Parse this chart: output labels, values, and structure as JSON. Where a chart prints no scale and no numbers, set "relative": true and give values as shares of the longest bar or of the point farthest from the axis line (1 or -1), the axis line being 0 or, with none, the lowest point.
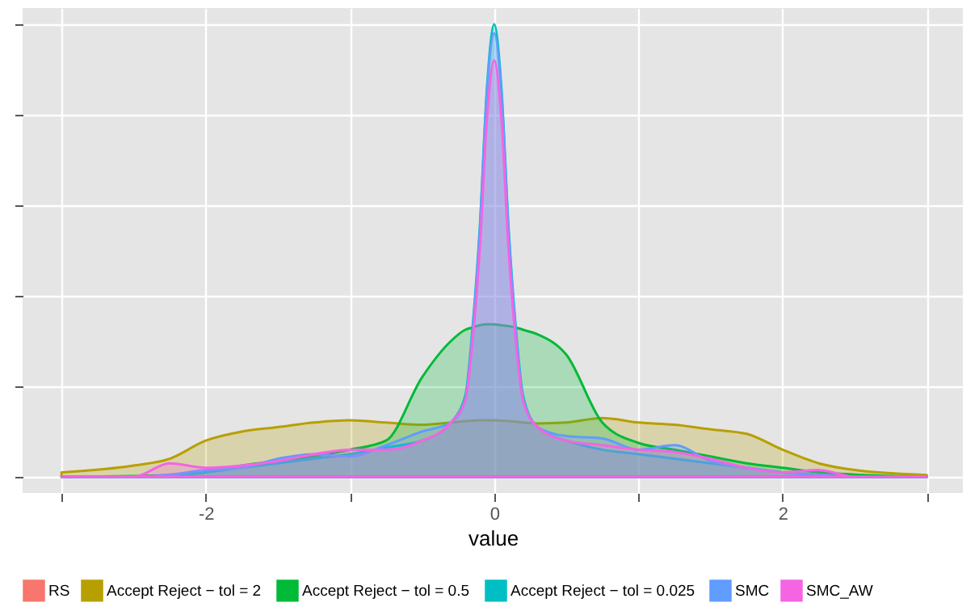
{
  "chart_data": {
    "type": "area",
    "relative": true,
    "xlabel": "value",
    "x": [
      -3,
      -2.5,
      -2.25,
      -2,
      -1.75,
      -1.5,
      -1.25,
      -1,
      -0.75,
      -0.5,
      -0.3,
      -0.2,
      -0.15,
      -0.1,
      -0.05,
      0,
      0.05,
      0.1,
      0.15,
      0.2,
      0.3,
      0.5,
      0.75,
      1,
      1.25,
      1.5,
      1.75,
      2,
      2.25,
      2.5,
      3
    ],
    "xlim": [
      -3.27,
      3.25
    ],
    "xticks": [
      {
        "value": -3,
        "label": null
      },
      -2,
      {
        "value": -1,
        "label": null
      },
      0,
      {
        "value": 1,
        "label": null
      },
      2,
      {
        "value": 3,
        "label": null
      }
    ],
    "grid": true,
    "legend": "bottom",
    "series": [
      {
        "name": "RS",
        "color": "#f8766d",
        "values": [
          null,
          null,
          null,
          null,
          null,
          null,
          null,
          null,
          null,
          null,
          null,
          null,
          null,
          null,
          null,
          null,
          null,
          null,
          null,
          null,
          null,
          null,
          null,
          null,
          null,
          null,
          null,
          null,
          null,
          null,
          null
        ]
      },
      {
        "name": "Accept Reject − tol =  2",
        "color": "#b79f00",
        "values": [
          0.01,
          0.025,
          0.04,
          0.08,
          0.1,
          0.11,
          0.12,
          0.125,
          0.12,
          0.115,
          0.12,
          0.123,
          0.124,
          0.125,
          0.125,
          0.125,
          0.124,
          0.123,
          0.122,
          0.12,
          0.118,
          0.12,
          0.13,
          0.12,
          0.115,
          0.105,
          0.095,
          0.06,
          0.03,
          0.015,
          0.004
        ]
      },
      {
        "name": "Accept Reject − tol =  0.5",
        "color": "#00ba38",
        "values": [
          0,
          0.002,
          0.004,
          0.01,
          0.025,
          0.035,
          0.045,
          0.06,
          0.08,
          0.22,
          0.3,
          0.325,
          0.33,
          0.335,
          0.337,
          0.337,
          0.335,
          0.333,
          0.33,
          0.325,
          0.315,
          0.27,
          0.12,
          0.075,
          0.06,
          0.045,
          0.03,
          0.02,
          0.01,
          0.005,
          0
        ]
      },
      {
        "name": "Accept Reject − tol =  0.025",
        "color": "#00bfc4",
        "values": [
          0,
          0,
          0.002,
          0.01,
          0.02,
          0.03,
          0.04,
          0.05,
          0.065,
          0.08,
          0.12,
          0.18,
          0.33,
          0.55,
          0.86,
          1,
          0.86,
          0.55,
          0.33,
          0.18,
          0.11,
          0.08,
          0.06,
          0.05,
          0.04,
          0.03,
          0.02,
          0.01,
          0.005,
          0,
          0
        ]
      },
      {
        "name": "SMC",
        "color": "#619cff",
        "values": [
          0,
          0,
          0.005,
          0.015,
          0.02,
          0.04,
          0.05,
          0.045,
          0.07,
          0.1,
          0.12,
          0.17,
          0.32,
          0.54,
          0.85,
          0.98,
          0.85,
          0.54,
          0.32,
          0.17,
          0.11,
          0.09,
          0.085,
          0.06,
          0.07,
          0.035,
          0.02,
          0.01,
          0.005,
          0,
          0
        ]
      },
      {
        "name": "SMC_AW",
        "color": "#f564e3",
        "values": [
          0,
          0,
          0.03,
          0.02,
          0.025,
          0.035,
          0.05,
          0.06,
          0.06,
          0.08,
          0.12,
          0.17,
          0.3,
          0.5,
          0.79,
          0.92,
          0.79,
          0.5,
          0.3,
          0.17,
          0.11,
          0.08,
          0.07,
          0.06,
          0.055,
          0.04,
          0.02,
          0.01,
          0.015,
          0,
          0
        ]
      }
    ]
  }
}
